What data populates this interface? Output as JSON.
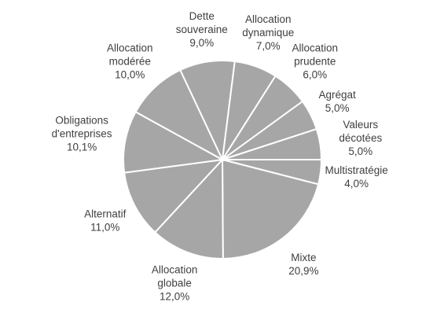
{
  "chart_data": {
    "type": "pie",
    "title": "",
    "series": [
      {
        "slices": [
          {
            "name": "Multistratégie",
            "value": 4.0,
            "label": [
              "Multistratégie",
              "4,0%"
            ]
          },
          {
            "name": "Mixte",
            "value": 20.9,
            "label": [
              "Mixte",
              "20,9%"
            ]
          },
          {
            "name": "Allocation globale",
            "value": 12.0,
            "label": [
              "Allocation",
              "globale",
              "12,0%"
            ]
          },
          {
            "name": "Alternatif",
            "value": 11.0,
            "label": [
              "Alternatif",
              "11,0%"
            ]
          },
          {
            "name": "Obligations d'entreprises",
            "value": 10.1,
            "label": [
              "Obligations",
              "d'entreprises",
              "10,1%"
            ]
          },
          {
            "name": "Allocation modérée",
            "value": 10.0,
            "label": [
              "Allocation",
              "modérée",
              "10,0%"
            ]
          },
          {
            "name": "Dette souveraine",
            "value": 9.0,
            "label": [
              "Dette",
              "souveraine",
              "9,0%"
            ]
          },
          {
            "name": "Allocation dynamique",
            "value": 7.0,
            "label": [
              "Allocation",
              "dynamique",
              "7,0%"
            ]
          },
          {
            "name": "Allocation prudente",
            "value": 6.0,
            "label": [
              "Allocation",
              "prudente",
              "6,0%"
            ]
          },
          {
            "name": "Agrégat",
            "value": 5.0,
            "label": [
              "Agrégat",
              "5,0%"
            ]
          },
          {
            "name": "Valeurs décotées",
            "value": 5.0,
            "label": [
              "Valeurs",
              "décotées",
              "5,0%"
            ]
          }
        ]
      }
    ],
    "colors": {
      "slice_fill": "#a6a6a6",
      "slice_border": "#ffffff",
      "label_text": "#3f3f3f"
    },
    "legend": "none"
  }
}
